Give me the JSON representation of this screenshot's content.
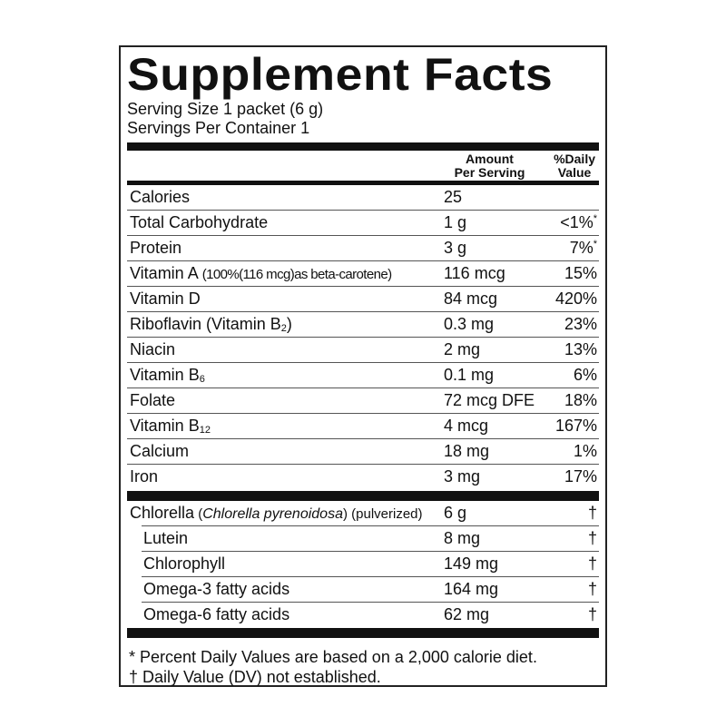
{
  "title": "Supplement Facts",
  "serving_size": "Serving Size 1 packet (6 g)",
  "servings_per_container": "Servings Per Container 1",
  "header": {
    "amount_line1": "Amount",
    "amount_line2": "Per Serving",
    "dv_line1": "%Daily",
    "dv_line2": "Value"
  },
  "nutrients": [
    {
      "name": "Calories",
      "amount": "25",
      "dv": ""
    },
    {
      "name": "Total Carbohydrate",
      "amount": "1 g",
      "dv": "<1%",
      "dv_mark": "*"
    },
    {
      "name": "Protein",
      "amount": "3 g",
      "dv": "7%",
      "dv_mark": "*"
    },
    {
      "name": "Vitamin A",
      "note": "(100%(116 mcg)as beta-carotene)",
      "amount": "116 mcg",
      "dv": "15%"
    },
    {
      "name": "Vitamin D",
      "amount": "84 mcg",
      "dv": "420%"
    },
    {
      "name": "Riboflavin (Vitamin B",
      "subscript": "2",
      "suffix": ")",
      "amount": "0.3 mg",
      "dv": "23%"
    },
    {
      "name": "Niacin",
      "amount": "2 mg",
      "dv": "13%"
    },
    {
      "name": "Vitamin B",
      "subscript": "6",
      "amount": "0.1 mg",
      "dv": "6%"
    },
    {
      "name": "Folate",
      "amount": "72 mcg DFE",
      "dv": "18%"
    },
    {
      "name": "Vitamin B",
      "subscript": "12",
      "amount": "4 mcg",
      "dv": "167%"
    },
    {
      "name": "Calcium",
      "amount": "18 mg",
      "dv": "1%"
    },
    {
      "name": "Iron",
      "amount": "3 mg",
      "dv": "17%"
    }
  ],
  "other_ingredients": [
    {
      "name": "Chlorella",
      "italic_pre": " (",
      "italic": "Chlorella pyrenoidosa",
      "suffix": ") (pulverized)",
      "amount": "6 g",
      "dv": "†"
    },
    {
      "name": "Lutein",
      "amount": "8 mg",
      "dv": "†",
      "indent": true
    },
    {
      "name": "Chlorophyll",
      "amount": "149 mg",
      "dv": "†",
      "indent": true
    },
    {
      "name": "Omega-3 fatty acids",
      "amount": "164 mg",
      "dv": "†",
      "indent": true
    },
    {
      "name": "Omega-6 fatty acids",
      "amount": "62 mg",
      "dv": "†",
      "indent": true
    }
  ],
  "footnotes": [
    "* Percent Daily Values are based on a 2,000 calorie diet.",
    "† Daily Value (DV) not established."
  ]
}
